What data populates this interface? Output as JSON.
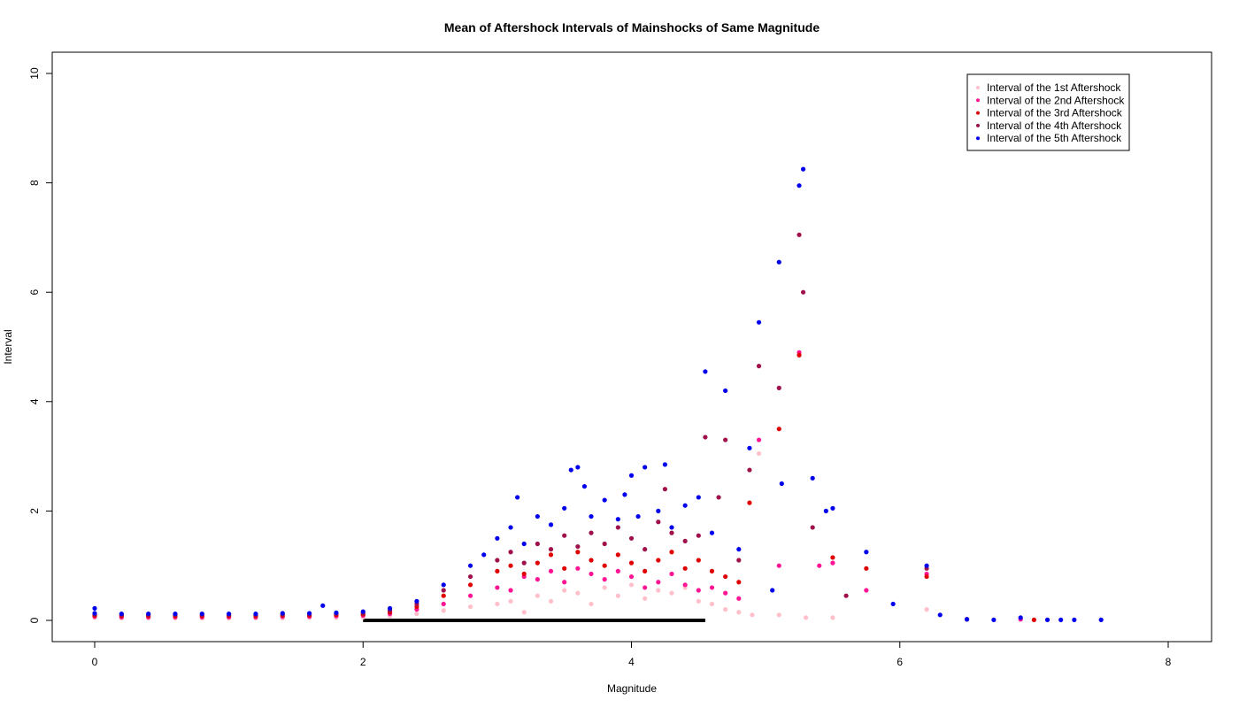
{
  "chart_data": {
    "type": "scatter",
    "title": "Mean of Aftershock Intervals of Mainshocks of Same Magnitude",
    "xlabel": "Magnitude",
    "ylabel": "Interval",
    "xlim": [
      0,
      8
    ],
    "ylim": [
      0,
      10
    ],
    "x_ticks": [
      "0",
      "2",
      "4",
      "6",
      "8"
    ],
    "y_ticks": [
      "0",
      "2",
      "4",
      "6",
      "8",
      "10"
    ],
    "legend_position": "top-right",
    "baseline_color": "#000000",
    "series": [
      {
        "name": "Interval of the 1st Aftershock",
        "color": "#FFC0CB",
        "points": [
          [
            0,
            0.05
          ],
          [
            0.2,
            0.04
          ],
          [
            0.4,
            0.04
          ],
          [
            0.6,
            0.04
          ],
          [
            0.8,
            0.04
          ],
          [
            1.0,
            0.04
          ],
          [
            1.2,
            0.04
          ],
          [
            1.4,
            0.04
          ],
          [
            1.6,
            0.05
          ],
          [
            1.8,
            0.05
          ],
          [
            2.0,
            0.06
          ],
          [
            2.2,
            0.08
          ],
          [
            2.4,
            0.12
          ],
          [
            2.6,
            0.18
          ],
          [
            2.8,
            0.25
          ],
          [
            3.0,
            0.3
          ],
          [
            3.1,
            0.35
          ],
          [
            3.2,
            0.15
          ],
          [
            3.3,
            0.45
          ],
          [
            3.4,
            0.35
          ],
          [
            3.5,
            0.55
          ],
          [
            3.6,
            0.5
          ],
          [
            3.7,
            0.3
          ],
          [
            3.8,
            0.6
          ],
          [
            3.9,
            0.45
          ],
          [
            4.0,
            0.65
          ],
          [
            4.1,
            0.4
          ],
          [
            4.2,
            0.55
          ],
          [
            4.3,
            0.5
          ],
          [
            4.4,
            0.6
          ],
          [
            4.5,
            0.35
          ],
          [
            4.6,
            0.3
          ],
          [
            4.7,
            0.2
          ],
          [
            4.8,
            0.15
          ],
          [
            4.9,
            0.1
          ],
          [
            4.95,
            3.05
          ],
          [
            5.1,
            0.1
          ],
          [
            5.3,
            0.05
          ],
          [
            5.5,
            0.05
          ],
          [
            6.2,
            0.2
          ]
        ]
      },
      {
        "name": "Interval of the 2nd Aftershock",
        "color": "#FF1493",
        "points": [
          [
            0,
            0.07
          ],
          [
            0.2,
            0.06
          ],
          [
            0.4,
            0.06
          ],
          [
            0.6,
            0.06
          ],
          [
            0.8,
            0.06
          ],
          [
            1.0,
            0.06
          ],
          [
            1.2,
            0.06
          ],
          [
            1.4,
            0.07
          ],
          [
            1.6,
            0.07
          ],
          [
            1.8,
            0.08
          ],
          [
            2.0,
            0.09
          ],
          [
            2.2,
            0.12
          ],
          [
            2.4,
            0.2
          ],
          [
            2.6,
            0.3
          ],
          [
            2.8,
            0.45
          ],
          [
            3.0,
            0.6
          ],
          [
            3.1,
            0.55
          ],
          [
            3.2,
            0.8
          ],
          [
            3.3,
            0.75
          ],
          [
            3.4,
            0.9
          ],
          [
            3.5,
            0.7
          ],
          [
            3.6,
            0.95
          ],
          [
            3.7,
            0.85
          ],
          [
            3.8,
            0.75
          ],
          [
            3.9,
            0.9
          ],
          [
            4.0,
            0.8
          ],
          [
            4.1,
            0.6
          ],
          [
            4.2,
            0.7
          ],
          [
            4.3,
            0.85
          ],
          [
            4.4,
            0.65
          ],
          [
            4.5,
            0.55
          ],
          [
            4.6,
            0.6
          ],
          [
            4.7,
            0.5
          ],
          [
            4.8,
            0.4
          ],
          [
            4.95,
            3.3
          ],
          [
            5.1,
            1.0
          ],
          [
            5.25,
            4.9
          ],
          [
            5.4,
            1.0
          ],
          [
            5.5,
            1.05
          ],
          [
            5.75,
            0.55
          ],
          [
            6.2,
            0.85
          ],
          [
            6.9,
            0.02
          ]
        ]
      },
      {
        "name": "Interval of the 3rd Aftershock",
        "color": "#E00000",
        "points": [
          [
            0,
            0.09
          ],
          [
            0.2,
            0.08
          ],
          [
            0.4,
            0.08
          ],
          [
            0.6,
            0.08
          ],
          [
            0.8,
            0.08
          ],
          [
            1.0,
            0.08
          ],
          [
            1.2,
            0.08
          ],
          [
            1.4,
            0.09
          ],
          [
            1.6,
            0.09
          ],
          [
            1.8,
            0.1
          ],
          [
            2.0,
            0.11
          ],
          [
            2.2,
            0.15
          ],
          [
            2.4,
            0.25
          ],
          [
            2.6,
            0.45
          ],
          [
            2.8,
            0.65
          ],
          [
            3.0,
            0.9
          ],
          [
            3.1,
            1.0
          ],
          [
            3.2,
            0.85
          ],
          [
            3.3,
            1.05
          ],
          [
            3.4,
            1.2
          ],
          [
            3.5,
            0.95
          ],
          [
            3.6,
            1.25
          ],
          [
            3.7,
            1.1
          ],
          [
            3.8,
            1.0
          ],
          [
            3.9,
            1.2
          ],
          [
            4.0,
            1.05
          ],
          [
            4.1,
            0.9
          ],
          [
            4.2,
            1.1
          ],
          [
            4.3,
            1.25
          ],
          [
            4.4,
            0.95
          ],
          [
            4.5,
            1.1
          ],
          [
            4.6,
            0.9
          ],
          [
            4.7,
            0.8
          ],
          [
            4.8,
            0.7
          ],
          [
            4.88,
            2.15
          ],
          [
            5.1,
            3.5
          ],
          [
            5.25,
            4.85
          ],
          [
            5.5,
            1.15
          ],
          [
            5.75,
            0.95
          ],
          [
            6.2,
            0.8
          ],
          [
            6.5,
            0.02
          ],
          [
            7.0,
            0.01
          ]
        ]
      },
      {
        "name": "Interval of the 4th Aftershock",
        "color": "#A0104A",
        "points": [
          [
            0,
            0.11
          ],
          [
            0.2,
            0.1
          ],
          [
            0.4,
            0.1
          ],
          [
            0.6,
            0.1
          ],
          [
            0.8,
            0.1
          ],
          [
            1.0,
            0.1
          ],
          [
            1.2,
            0.1
          ],
          [
            1.4,
            0.11
          ],
          [
            1.6,
            0.11
          ],
          [
            1.8,
            0.12
          ],
          [
            2.0,
            0.13
          ],
          [
            2.2,
            0.18
          ],
          [
            2.4,
            0.3
          ],
          [
            2.6,
            0.55
          ],
          [
            2.8,
            0.8
          ],
          [
            3.0,
            1.1
          ],
          [
            3.1,
            1.25
          ],
          [
            3.2,
            1.05
          ],
          [
            3.3,
            1.4
          ],
          [
            3.4,
            1.3
          ],
          [
            3.5,
            1.55
          ],
          [
            3.6,
            1.35
          ],
          [
            3.7,
            1.6
          ],
          [
            3.8,
            1.4
          ],
          [
            3.9,
            1.7
          ],
          [
            4.0,
            1.5
          ],
          [
            4.1,
            1.3
          ],
          [
            4.2,
            1.8
          ],
          [
            4.25,
            2.4
          ],
          [
            4.3,
            1.6
          ],
          [
            4.4,
            1.45
          ],
          [
            4.5,
            1.55
          ],
          [
            4.55,
            3.35
          ],
          [
            4.65,
            2.25
          ],
          [
            4.7,
            3.3
          ],
          [
            4.8,
            1.1
          ],
          [
            4.88,
            2.75
          ],
          [
            4.95,
            4.65
          ],
          [
            5.1,
            4.25
          ],
          [
            5.25,
            7.05
          ],
          [
            5.28,
            6.0
          ],
          [
            5.35,
            1.7
          ],
          [
            5.6,
            0.45
          ],
          [
            6.2,
            0.95
          ]
        ]
      },
      {
        "name": "Interval of the 5th Aftershock",
        "color": "#0000EE",
        "points": [
          [
            0,
            0.22
          ],
          [
            0,
            0.13
          ],
          [
            0.2,
            0.12
          ],
          [
            0.4,
            0.12
          ],
          [
            0.6,
            0.12
          ],
          [
            0.8,
            0.12
          ],
          [
            1.0,
            0.12
          ],
          [
            1.2,
            0.12
          ],
          [
            1.4,
            0.13
          ],
          [
            1.6,
            0.13
          ],
          [
            1.7,
            0.27
          ],
          [
            1.8,
            0.14
          ],
          [
            2.0,
            0.16
          ],
          [
            2.2,
            0.22
          ],
          [
            2.4,
            0.35
          ],
          [
            2.6,
            0.65
          ],
          [
            2.8,
            1.0
          ],
          [
            2.9,
            1.2
          ],
          [
            3.0,
            1.5
          ],
          [
            3.1,
            1.7
          ],
          [
            3.15,
            2.25
          ],
          [
            3.2,
            1.4
          ],
          [
            3.3,
            1.9
          ],
          [
            3.4,
            1.75
          ],
          [
            3.5,
            2.05
          ],
          [
            3.55,
            2.75
          ],
          [
            3.6,
            2.8
          ],
          [
            3.65,
            2.45
          ],
          [
            3.7,
            1.9
          ],
          [
            3.8,
            2.2
          ],
          [
            3.9,
            1.85
          ],
          [
            3.95,
            2.3
          ],
          [
            4.0,
            2.65
          ],
          [
            4.05,
            1.9
          ],
          [
            4.1,
            2.8
          ],
          [
            4.2,
            2.0
          ],
          [
            4.25,
            2.85
          ],
          [
            4.3,
            1.7
          ],
          [
            4.4,
            2.1
          ],
          [
            4.5,
            2.25
          ],
          [
            4.55,
            4.55
          ],
          [
            4.6,
            1.6
          ],
          [
            4.7,
            4.2
          ],
          [
            4.8,
            1.3
          ],
          [
            4.88,
            3.15
          ],
          [
            4.95,
            5.45
          ],
          [
            5.05,
            0.55
          ],
          [
            5.1,
            6.55
          ],
          [
            5.12,
            2.5
          ],
          [
            5.25,
            7.95
          ],
          [
            5.28,
            8.25
          ],
          [
            5.35,
            2.6
          ],
          [
            5.45,
            2.0
          ],
          [
            5.5,
            2.05
          ],
          [
            5.75,
            1.25
          ],
          [
            5.95,
            0.3
          ],
          [
            6.2,
            1.0
          ],
          [
            6.3,
            0.1
          ],
          [
            6.5,
            0.02
          ],
          [
            6.7,
            0.01
          ],
          [
            6.9,
            0.05
          ],
          [
            7.1,
            0.01
          ],
          [
            7.2,
            0.01
          ],
          [
            7.3,
            0.01
          ],
          [
            7.5,
            0.01
          ]
        ]
      }
    ]
  }
}
